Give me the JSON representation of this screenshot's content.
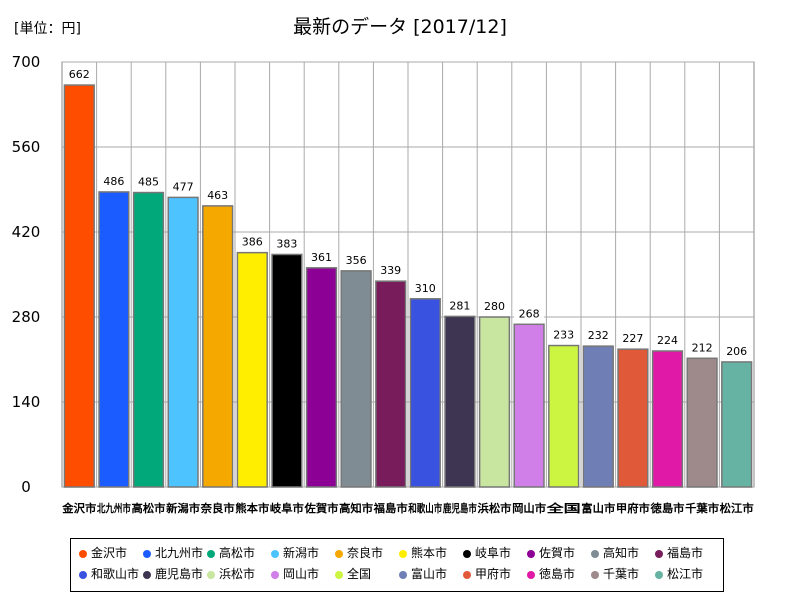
{
  "chart_data": {
    "type": "bar",
    "title": "最新のデータ [2017/12]",
    "unit_label": "[単位：円]",
    "xlabel": "",
    "ylabel": "",
    "ylim": [
      0,
      700
    ],
    "yticks": [
      0,
      140,
      280,
      420,
      560,
      700
    ],
    "grid": true,
    "legend_position": "bottom",
    "categories": [
      "金沢市",
      "北九州市",
      "高松市",
      "新潟市",
      "奈良市",
      "熊本市",
      "岐阜市",
      "佐賀市",
      "高知市",
      "福島市",
      "和歌山市",
      "鹿児島市",
      "浜松市",
      "岡山市",
      "全国",
      "富山市",
      "甲府市",
      "徳島市",
      "千葉市",
      "松江市"
    ],
    "values": [
      662,
      486,
      485,
      477,
      463,
      386,
      383,
      361,
      356,
      339,
      310,
      281,
      280,
      268,
      233,
      232,
      227,
      224,
      212,
      206
    ],
    "colors": [
      "#ff4d00",
      "#1a5cff",
      "#00a87a",
      "#4dc4ff",
      "#f5a800",
      "#ffee00",
      "#000000",
      "#8c0096",
      "#7f8c94",
      "#781c5c",
      "#3a52e0",
      "#3e3552",
      "#c8e6a0",
      "#d07ee8",
      "#ccf541",
      "#6f7fb5",
      "#e05a3a",
      "#e01aa6",
      "#9e8a8a",
      "#67b3a3"
    ]
  }
}
